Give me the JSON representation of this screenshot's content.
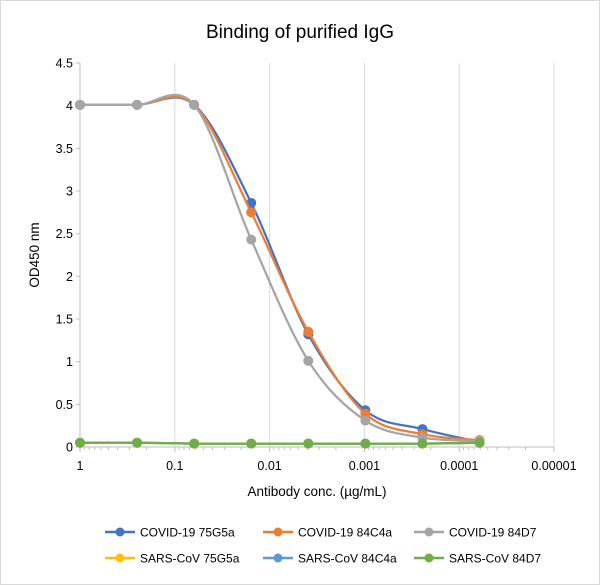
{
  "chart_data": {
    "type": "scatter",
    "title": "Binding of purified IgG",
    "xlabel": "Antibody conc. (µg/mL)",
    "ylabel": "OD450 nm",
    "x_scale": "log-reversed",
    "xlim": [
      1,
      1e-05
    ],
    "ylim": [
      0,
      4.5
    ],
    "x_ticks": [
      1,
      0.1,
      0.01,
      0.001,
      0.0001,
      1e-05
    ],
    "x_tick_labels": [
      "1",
      "0.1",
      "0.01",
      "0.001",
      "0.0001",
      "0.00001"
    ],
    "y_ticks": [
      0,
      0.5,
      1,
      1.5,
      2,
      2.5,
      3,
      3.5,
      4,
      4.5
    ],
    "y_tick_labels": [
      "0",
      "0.5",
      "1",
      "1.5",
      "2",
      "2.5",
      "3",
      "3.5",
      "4",
      "4.5"
    ],
    "grid": "vertical",
    "legend": "bottom",
    "x": [
      1,
      0.25,
      0.0625,
      0.015625,
      0.00390625,
      0.0009765625,
      0.000244140625,
      6.103515625e-05
    ],
    "series": [
      {
        "name": "COVID-19 75G5a",
        "color": "#4472C4",
        "values": [
          4.01,
          4.01,
          4.01,
          2.86,
          1.32,
          0.43,
          0.21,
          0.06
        ]
      },
      {
        "name": "COVID-19 84C4a",
        "color": "#ED7D31",
        "values": [
          4.01,
          4.01,
          4.01,
          2.75,
          1.35,
          0.39,
          0.15,
          0.08
        ]
      },
      {
        "name": "COVID-19 84D7",
        "color": "#A5A5A5",
        "values": [
          4.01,
          4.01,
          4.01,
          2.43,
          1.01,
          0.31,
          0.11,
          0.07
        ]
      },
      {
        "name": "SARS-CoV 75G5a",
        "color": "#FFC000",
        "values": [
          0.05,
          0.05,
          0.04,
          0.04,
          0.04,
          0.04,
          0.04,
          0.05
        ]
      },
      {
        "name": "SARS-CoV 84C4a",
        "color": "#5B9BD5",
        "values": [
          0.05,
          0.05,
          0.04,
          0.04,
          0.04,
          0.04,
          0.04,
          0.05
        ]
      },
      {
        "name": "SARS-CoV 84D7",
        "color": "#70AD47",
        "values": [
          0.05,
          0.05,
          0.04,
          0.04,
          0.04,
          0.04,
          0.04,
          0.05
        ]
      }
    ]
  }
}
